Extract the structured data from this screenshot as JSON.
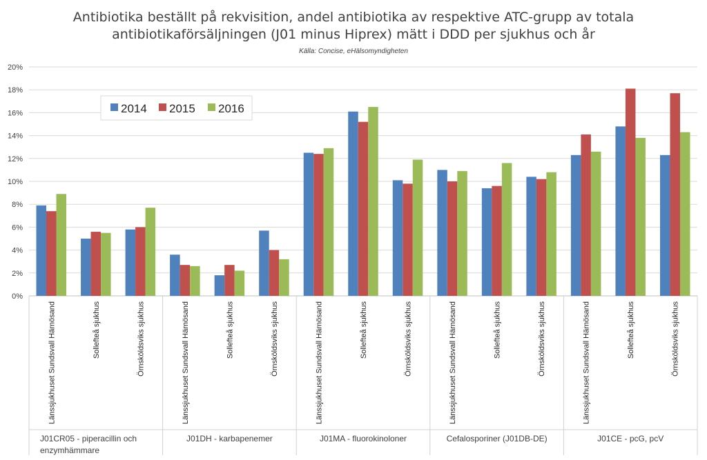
{
  "chart_data": {
    "type": "bar",
    "title_lines": [
      "Antibiotika beställt på rekvisition, andel antibiotika av respektive ATC-grupp av totala",
      "antibiotikaförsäljningen (J01 minus Hiprex) mätt i DDD per sjukhus och år"
    ],
    "subtitle": "Källa: Concise, eHälsomyndigheten",
    "y_ticks": [
      "0%",
      "2%",
      "4%",
      "6%",
      "8%",
      "10%",
      "12%",
      "14%",
      "16%",
      "18%",
      "20%"
    ],
    "ylim": [
      0,
      20
    ],
    "y_unit": "%",
    "grid": true,
    "legend_position": "top-left",
    "groups": [
      {
        "label_lines": [
          "J01CR05 - piperacillin och",
          "enzymhämmare"
        ],
        "categories": [
          "Länssjukhuset Sundsvall Härnösand",
          "Sollefteå sjukhus",
          "Örnsköldsviks sjukhus"
        ]
      },
      {
        "label_lines": [
          "J01DH - karbapenemer"
        ],
        "categories": [
          "Länssjukhuset Sundsvall Härnösand",
          "Sollefteå sjukhus",
          "Örnsköldsviks sjukhus"
        ]
      },
      {
        "label_lines": [
          "J01MA - fluorokinoloner"
        ],
        "categories": [
          "Länssjukhuset Sundsvall Härnösand",
          "Sollefteå sjukhus",
          "Örnsköldsviks sjukhus"
        ]
      },
      {
        "label_lines": [
          "Cefalosporiner (J01DB-DE)"
        ],
        "categories": [
          "Länssjukhuset Sundsvall Härnösand",
          "Sollefteå sjukhus",
          "Örnsköldsviks sjukhus"
        ]
      },
      {
        "label_lines": [
          "J01CE - pcG, pcV"
        ],
        "categories": [
          "Länssjukhuset Sundsvall Härnösand",
          "Sollefteå sjukhus",
          "Örnsköldsviks sjukhus"
        ]
      }
    ],
    "series": [
      {
        "name": "2014",
        "color": "#4f81bd",
        "values": [
          7.9,
          5.0,
          5.8,
          3.6,
          1.8,
          5.7,
          12.5,
          16.1,
          10.1,
          11.0,
          9.4,
          10.4,
          12.3,
          14.8,
          12.3
        ]
      },
      {
        "name": "2015",
        "color": "#c0504d",
        "values": [
          7.4,
          5.6,
          6.0,
          2.7,
          2.7,
          4.0,
          12.4,
          15.2,
          9.8,
          10.0,
          9.6,
          10.2,
          14.1,
          18.1,
          17.7
        ]
      },
      {
        "name": "2016",
        "color": "#9bbb59",
        "values": [
          8.9,
          5.5,
          7.7,
          2.6,
          2.2,
          3.2,
          12.9,
          16.5,
          11.9,
          10.9,
          11.6,
          10.8,
          12.6,
          13.8,
          14.3
        ]
      }
    ]
  }
}
